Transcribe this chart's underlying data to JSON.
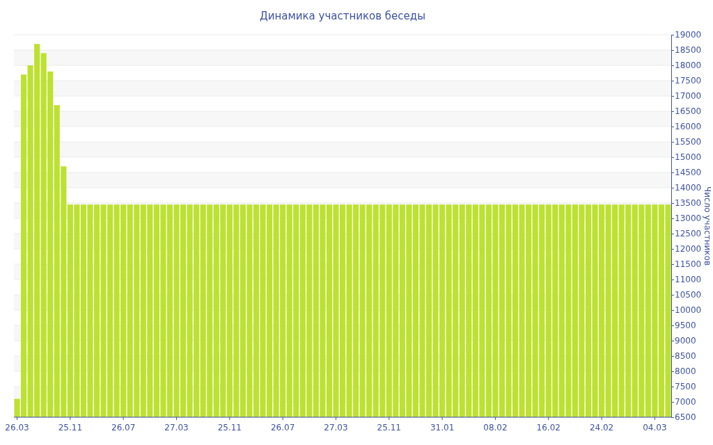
{
  "chart_data": {
    "type": "bar",
    "title": "Динамика участников беседы",
    "ylabel": "Число участников",
    "categories": [
      "26.03",
      null,
      null,
      null,
      null,
      null,
      null,
      null,
      "25.11",
      null,
      null,
      null,
      null,
      null,
      null,
      null,
      "26.07",
      null,
      null,
      null,
      null,
      null,
      null,
      null,
      "27.03",
      null,
      null,
      null,
      null,
      null,
      null,
      null,
      "25.11",
      null,
      null,
      null,
      null,
      null,
      null,
      null,
      "26.07",
      null,
      null,
      null,
      null,
      null,
      null,
      null,
      "27.03",
      null,
      null,
      null,
      null,
      null,
      null,
      null,
      "25.11",
      null,
      null,
      null,
      null,
      null,
      null,
      null,
      "31.01",
      null,
      null,
      null,
      null,
      null,
      null,
      null,
      "08.02",
      null,
      null,
      null,
      null,
      null,
      null,
      null,
      "16.02",
      null,
      null,
      null,
      null,
      null,
      null,
      null,
      "24.02",
      null,
      null,
      null,
      null,
      null,
      null,
      null,
      "04.03",
      null,
      null
    ],
    "values": [
      7100,
      17700,
      18000,
      18700,
      18400,
      17800,
      16700,
      14700,
      13450,
      13450,
      13450,
      13450,
      13450,
      13450,
      13450,
      13450,
      13450,
      13450,
      13450,
      13450,
      13450,
      13450,
      13450,
      13450,
      13450,
      13450,
      13450,
      13450,
      13450,
      13450,
      13450,
      13450,
      13450,
      13450,
      13450,
      13450,
      13450,
      13450,
      13450,
      13450,
      13450,
      13450,
      13450,
      13450,
      13450,
      13450,
      13450,
      13450,
      13450,
      13450,
      13450,
      13450,
      13450,
      13450,
      13450,
      13450,
      13450,
      13450,
      13450,
      13450,
      13450,
      13450,
      13450,
      13450,
      13450,
      13450,
      13450,
      13450,
      13450,
      13450,
      13450,
      13450,
      13450,
      13450,
      13450,
      13450,
      13450,
      13450,
      13450,
      13450,
      13450,
      13450,
      13450,
      13450,
      13450,
      13450,
      13450,
      13450,
      13450,
      13450,
      13450,
      13450,
      13450,
      13450,
      13450,
      13450,
      13450,
      13450,
      13450
    ],
    "color": "#bde130",
    "ylim": [
      6500,
      19000
    ],
    "yticks": [
      6500,
      7000,
      7500,
      8000,
      8500,
      9000,
      9500,
      10000,
      10500,
      11000,
      11500,
      12000,
      12500,
      13000,
      13500,
      14000,
      14500,
      15000,
      15500,
      16000,
      16500,
      17000,
      17500,
      18000,
      18500,
      19000
    ],
    "grid": "y"
  }
}
